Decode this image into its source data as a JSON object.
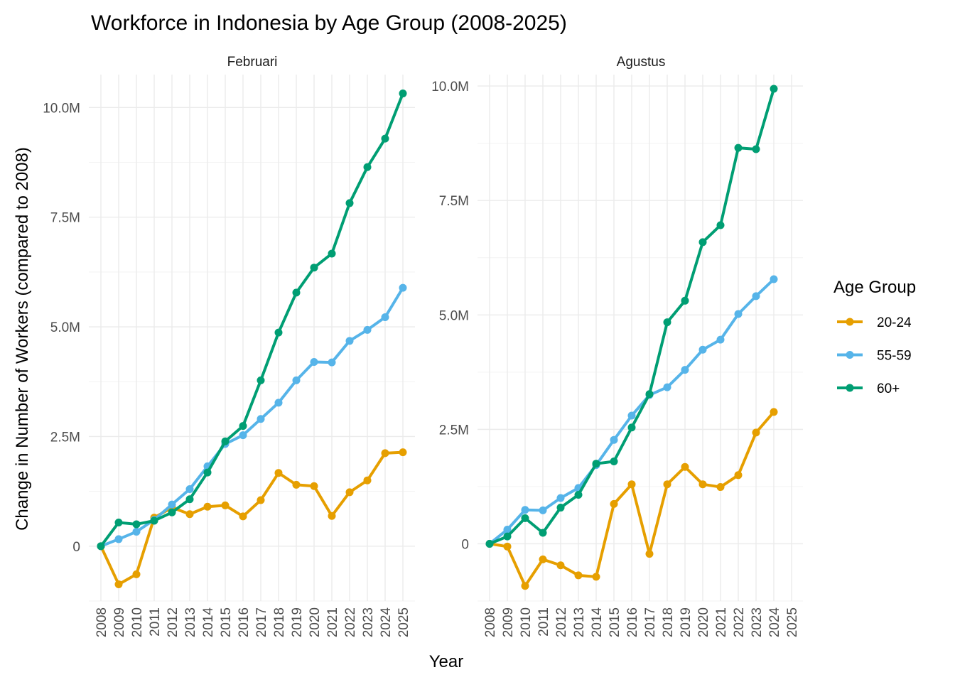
{
  "chart_data": {
    "type": "line",
    "title": "Workforce in Indonesia by Age Group (2008-2025)",
    "xlabel": "Year",
    "ylabel": "Change in Number of Workers (compared to 2008)",
    "legend": {
      "title": "Age Group",
      "position": "right",
      "entries": [
        {
          "name": "20-24",
          "color": "#E69F00"
        },
        {
          "name": "55-59",
          "color": "#56B4E9"
        },
        {
          "name": "60+",
          "color": "#009E73"
        }
      ]
    },
    "x_ticks": [
      "2008",
      "2009",
      "2010",
      "2011",
      "2012",
      "2013",
      "2014",
      "2015",
      "2016",
      "2017",
      "2018",
      "2019",
      "2020",
      "2021",
      "2022",
      "2023",
      "2024",
      "2025"
    ],
    "grid": true,
    "panels": [
      {
        "name": "Februari",
        "ylim": [
          -1250000,
          10750000
        ],
        "y_ticks": [
          0,
          2500000,
          5000000,
          7500000,
          10000000
        ],
        "y_tick_labels": [
          "0",
          "2.5M",
          "5.0M",
          "7.5M",
          "10.0M"
        ],
        "x": [
          2008,
          2009,
          2010,
          2011,
          2012,
          2013,
          2014,
          2015,
          2016,
          2017,
          2018,
          2019,
          2020,
          2021,
          2022,
          2023,
          2024,
          2025
        ],
        "series": [
          {
            "name": "20-24",
            "values": [
              0,
              -870000,
              -640000,
              650000,
              880000,
              730000,
              900000,
              930000,
              680000,
              1050000,
              1670000,
              1400000,
              1370000,
              690000,
              1230000,
              1500000,
              2120000,
              2140000
            ]
          },
          {
            "name": "55-59",
            "values": [
              0,
              160000,
              330000,
              600000,
              950000,
              1300000,
              1820000,
              2330000,
              2530000,
              2900000,
              3270000,
              3780000,
              4200000,
              4190000,
              4680000,
              4930000,
              5220000,
              5890000
            ]
          },
          {
            "name": "60+",
            "values": [
              0,
              540000,
              500000,
              580000,
              770000,
              1070000,
              1680000,
              2390000,
              2740000,
              3780000,
              4870000,
              5780000,
              6350000,
              6670000,
              7820000,
              8640000,
              9290000,
              10320000
            ]
          }
        ]
      },
      {
        "name": "Agustus",
        "ylim": [
          -1250000,
          10250000
        ],
        "y_ticks": [
          0,
          2500000,
          5000000,
          7500000,
          10000000
        ],
        "y_tick_labels": [
          "0",
          "2.5M",
          "5.0M",
          "7.5M",
          "10.0M"
        ],
        "x": [
          2008,
          2009,
          2010,
          2011,
          2012,
          2013,
          2014,
          2015,
          2016,
          2017,
          2018,
          2019,
          2020,
          2021,
          2022,
          2023,
          2024
        ],
        "series": [
          {
            "name": "20-24",
            "values": [
              0,
              -60000,
              -920000,
              -340000,
              -470000,
              -690000,
              -720000,
              870000,
              1300000,
              -220000,
              1300000,
              1680000,
              1300000,
              1240000,
              1500000,
              2430000,
              2880000
            ]
          },
          {
            "name": "55-59",
            "values": [
              0,
              310000,
              740000,
              730000,
              1000000,
              1220000,
              1720000,
              2270000,
              2800000,
              3250000,
              3420000,
              3800000,
              4240000,
              4460000,
              5020000,
              5410000,
              5780000
            ]
          },
          {
            "name": "60+",
            "values": [
              0,
              160000,
              560000,
              240000,
              790000,
              1070000,
              1750000,
              1800000,
              2540000,
              3270000,
              4840000,
              5310000,
              6590000,
              6960000,
              8650000,
              8620000,
              9940000
            ]
          }
        ]
      }
    ]
  }
}
